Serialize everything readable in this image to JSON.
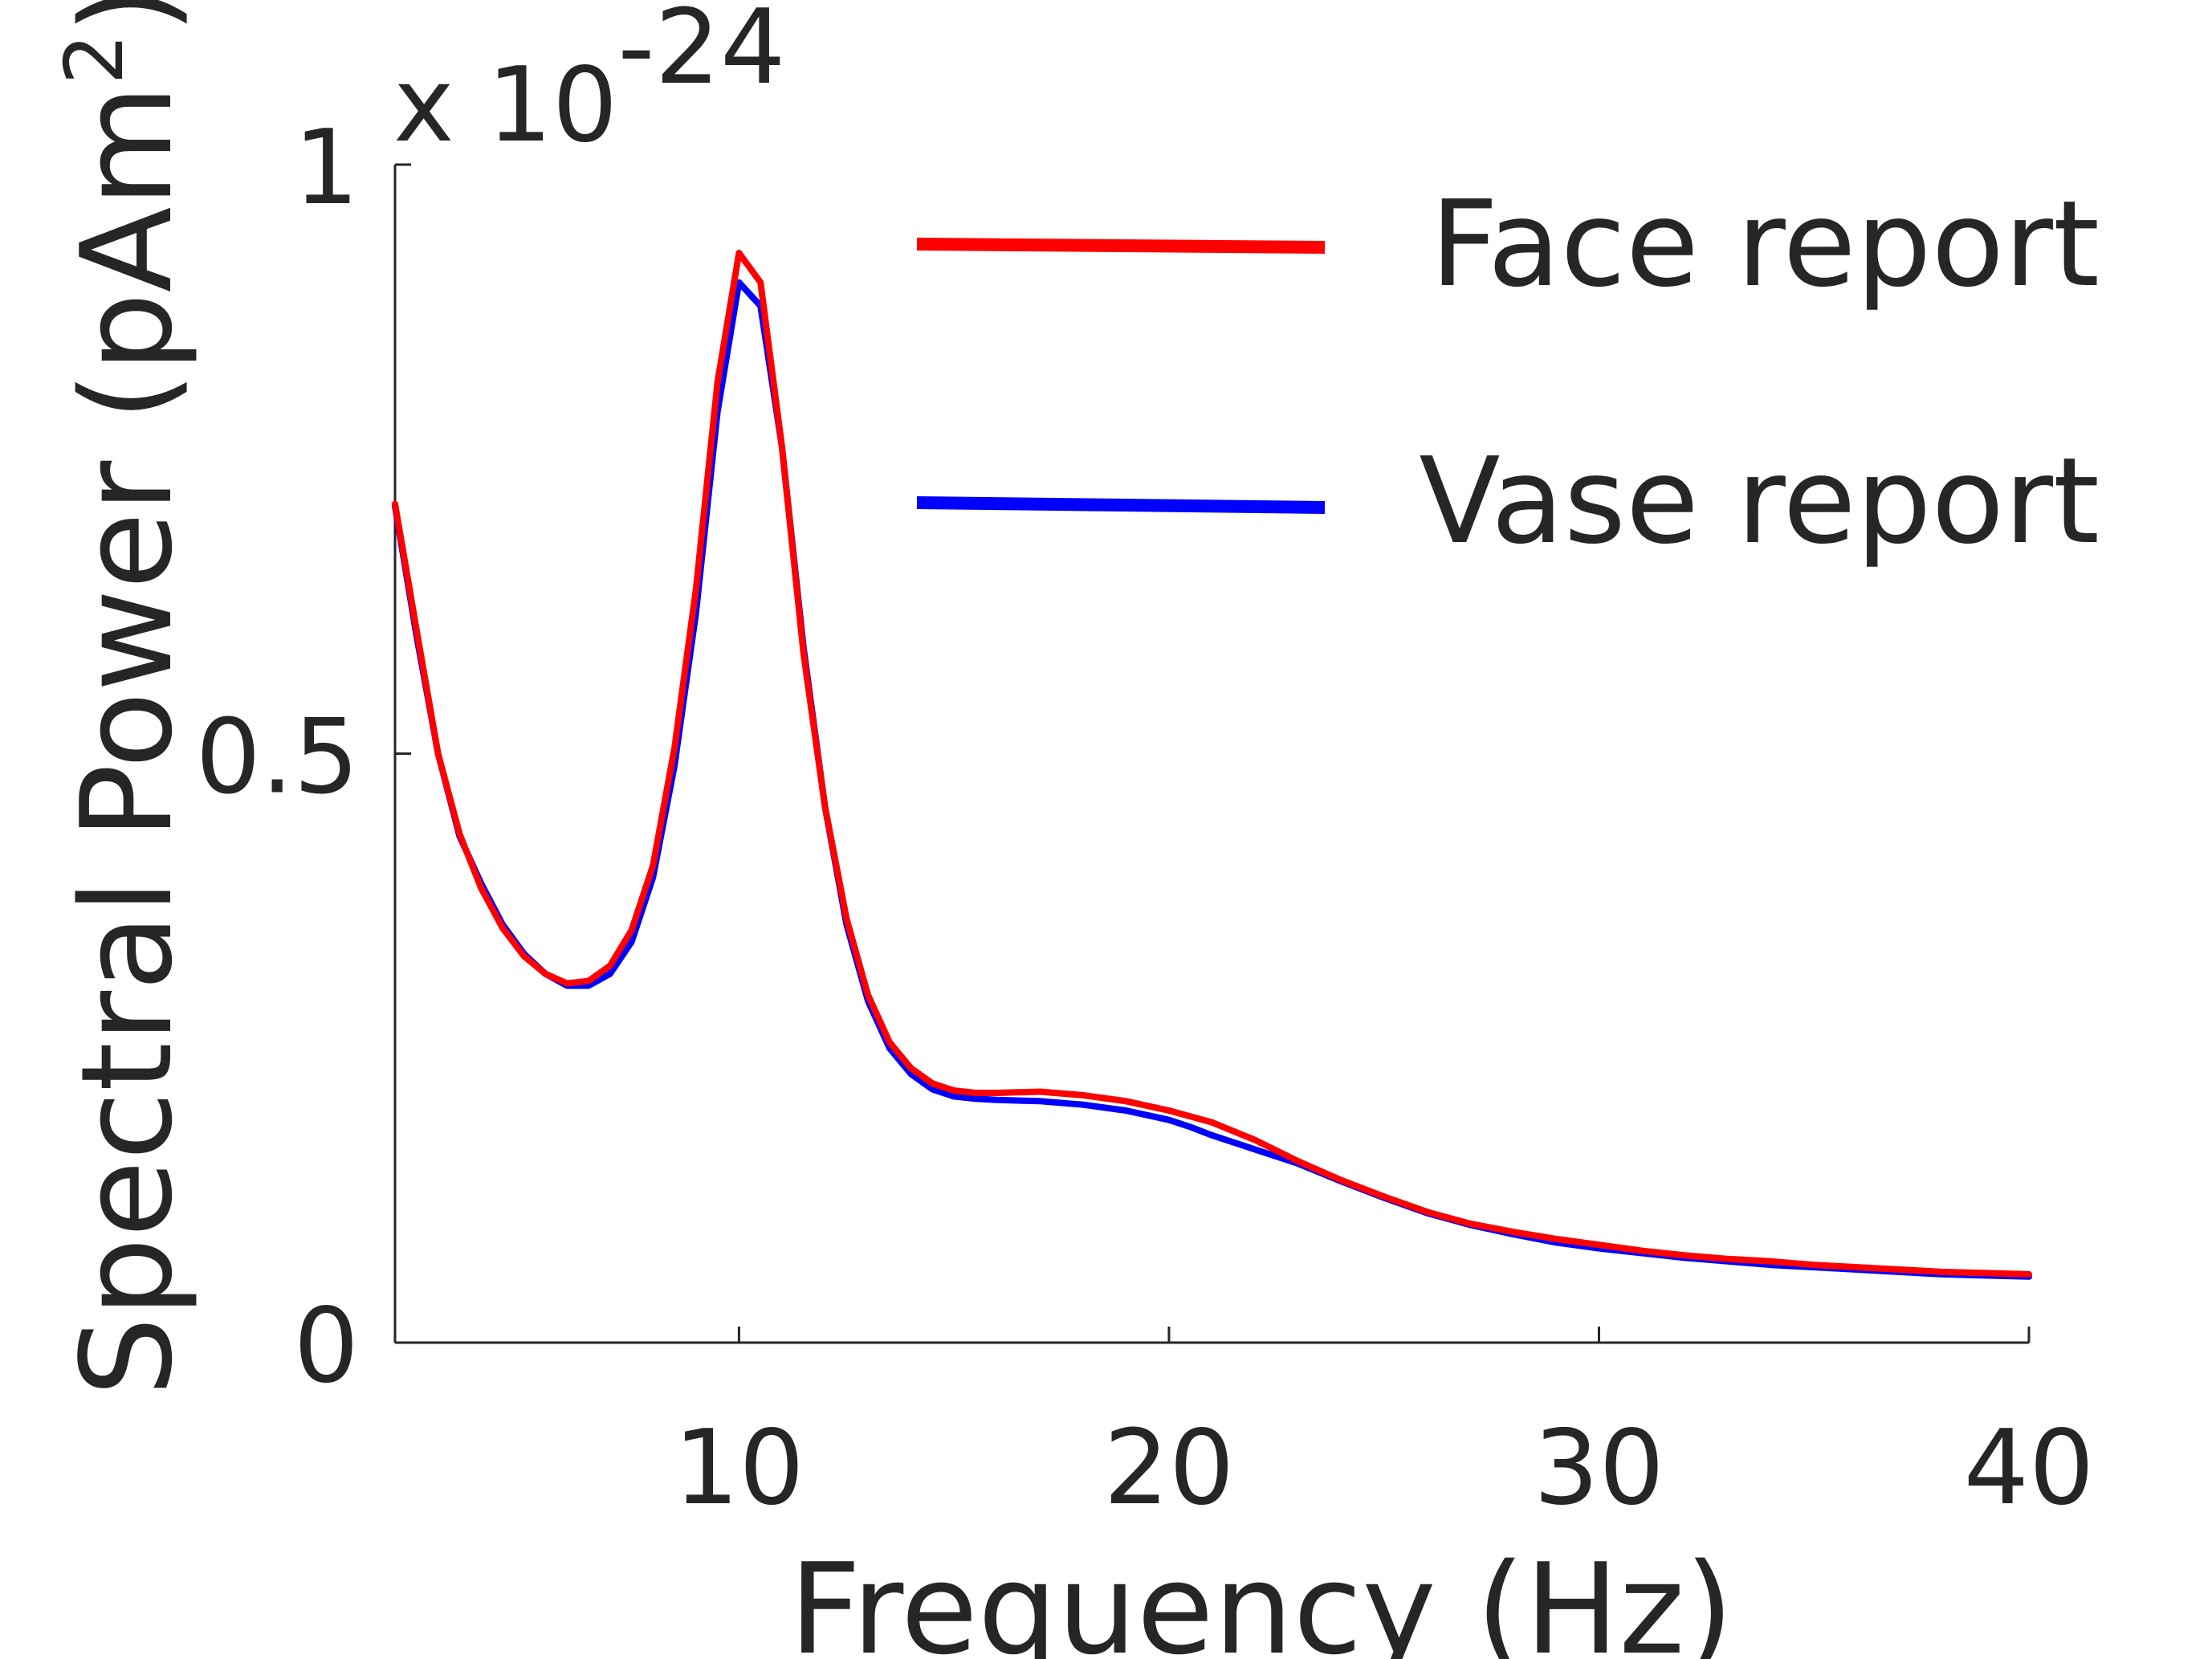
{
  "chart_data": {
    "type": "line",
    "title": "",
    "xlabel": "Frequency (Hz)",
    "ylabel": "Spectral Power (pAm",
    "ylabel_superscript": "2",
    "ylabel_close": ")",
    "y_exponent": {
      "base": "x 10",
      "power": "-24"
    },
    "xlim": [
      2,
      40
    ],
    "ylim": [
      0,
      1
    ],
    "x_ticks": [
      10,
      20,
      30,
      40
    ],
    "x_tick_labels": [
      "10",
      "20",
      "30",
      "40"
    ],
    "y_ticks": [
      0,
      0.5,
      1
    ],
    "y_tick_labels": [
      "0",
      "0.5",
      "1"
    ],
    "grid": false,
    "legend_position": "top-right",
    "x": [
      2,
      2.5,
      3,
      3.5,
      4,
      4.5,
      5,
      5.5,
      6,
      6.5,
      7,
      7.5,
      8,
      8.5,
      9,
      9.5,
      10,
      10.5,
      11,
      11.5,
      12,
      12.5,
      13,
      13.5,
      14,
      14.5,
      15,
      15.5,
      16,
      17,
      18,
      19,
      20,
      20.5,
      21,
      22,
      23,
      24,
      25,
      26,
      27,
      28,
      29,
      30,
      31,
      32,
      33,
      34,
      35,
      36,
      37,
      38,
      39,
      40
    ],
    "series": [
      {
        "name": "Vase report",
        "color": "#0000ff",
        "values": [
          0.71,
          0.6,
          0.5,
          0.43,
          0.39,
          0.355,
          0.33,
          0.313,
          0.303,
          0.303,
          0.313,
          0.34,
          0.395,
          0.49,
          0.62,
          0.79,
          0.9,
          0.88,
          0.76,
          0.59,
          0.455,
          0.355,
          0.29,
          0.25,
          0.228,
          0.215,
          0.209,
          0.207,
          0.206,
          0.205,
          0.202,
          0.197,
          0.189,
          0.183,
          0.176,
          0.164,
          0.152,
          0.137,
          0.123,
          0.11,
          0.1,
          0.092,
          0.085,
          0.08,
          0.076,
          0.072,
          0.069,
          0.066,
          0.064,
          0.062,
          0.06,
          0.058,
          0.057,
          0.056
        ]
      },
      {
        "name": "Face report",
        "color": "#ff0000",
        "values": [
          0.712,
          0.605,
          0.5,
          0.432,
          0.386,
          0.352,
          0.328,
          0.313,
          0.305,
          0.307,
          0.32,
          0.35,
          0.405,
          0.505,
          0.64,
          0.815,
          0.925,
          0.9,
          0.76,
          0.585,
          0.455,
          0.36,
          0.295,
          0.255,
          0.233,
          0.22,
          0.214,
          0.212,
          0.212,
          0.213,
          0.21,
          0.205,
          0.197,
          0.192,
          0.187,
          0.172,
          0.154,
          0.138,
          0.124,
          0.111,
          0.101,
          0.094,
          0.088,
          0.083,
          0.078,
          0.074,
          0.071,
          0.069,
          0.066,
          0.064,
          0.062,
          0.06,
          0.059,
          0.058
        ]
      }
    ]
  }
}
